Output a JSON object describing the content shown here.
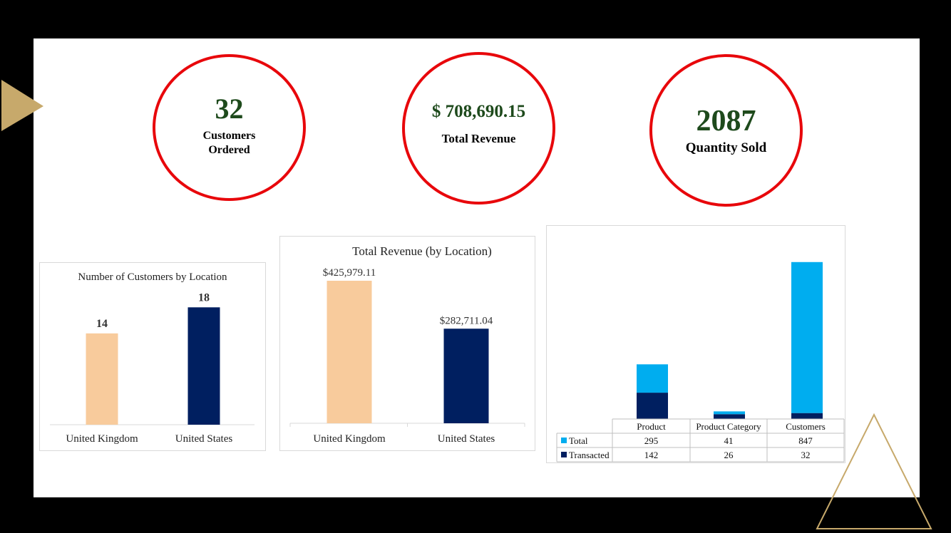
{
  "kpis": {
    "customers": {
      "value": "32",
      "label": "Customers Ordered"
    },
    "revenue": {
      "value": "$ 708,690.15",
      "label": "Total Revenue"
    },
    "quantity": {
      "value": "2087",
      "label": "Quantity Sold"
    }
  },
  "colors": {
    "ring": "#e8070b",
    "kpi_value": "#1e4a1c",
    "peach": "#f8cb9c",
    "navy": "#001f60",
    "sky": "#00adef",
    "gold": "#c7a96b"
  },
  "decor": {
    "left_marker": "triangle-pointer-icon",
    "corner_marker": "triangle-outline-icon"
  },
  "chart_data": [
    {
      "type": "bar",
      "title": "Number of Customers by Location",
      "categories": [
        "United Kingdom",
        "United States"
      ],
      "values": [
        14,
        18
      ],
      "data_labels": [
        "14",
        "18"
      ],
      "ylim": [
        0,
        20
      ],
      "grid": false,
      "legend": "none",
      "bar_colors": [
        "#f8cb9c",
        "#001f60"
      ]
    },
    {
      "type": "bar",
      "title": "Total Revenue (by Location)",
      "categories": [
        "United Kingdom",
        "United States"
      ],
      "values": [
        425979.11,
        282711.04
      ],
      "data_labels": [
        "$425,979.11",
        "$282,711.04"
      ],
      "ylim": [
        0,
        425979.11
      ],
      "grid": false,
      "legend": "none",
      "bar_colors": [
        "#f8cb9c",
        "#001f60"
      ]
    },
    {
      "type": "bar",
      "stacked": true,
      "title": "",
      "categories": [
        "Product",
        "Product Category",
        "Customers"
      ],
      "series": [
        {
          "name": "Total",
          "values": [
            295,
            41,
            847
          ],
          "color": "#00adef"
        },
        {
          "name": "Transacted",
          "values": [
            142,
            26,
            32
          ],
          "color": "#001f60"
        }
      ],
      "ylim": [
        0,
        900
      ],
      "grid": false,
      "legend": "data-table",
      "data_table": true
    }
  ]
}
